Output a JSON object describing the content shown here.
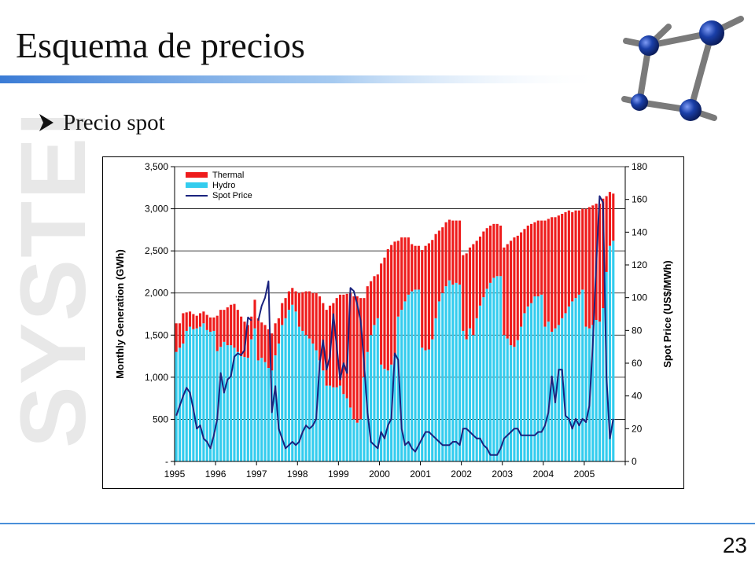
{
  "slide": {
    "title": "Esquema de precios",
    "bullet": "Precio spot",
    "page_number": "23",
    "watermark": "SYSTEP",
    "colors": {
      "accent_blue": "#4a90d9",
      "molecule_ball": "#1a3fa8",
      "molecule_rod": "#7a7a7a"
    }
  },
  "chart_data": {
    "type": "bar",
    "title": "",
    "ylabel": "Monthly Generation (GWh)",
    "y2label": "Spot Price (US$/MWh)",
    "ylim": [
      0,
      3500
    ],
    "y2lim": [
      0,
      180
    ],
    "y_ticks": [
      "-",
      "500",
      "1,000",
      "1,500",
      "2,000",
      "2,500",
      "3,000",
      "3,500"
    ],
    "y2_ticks": [
      "0",
      "20",
      "40",
      "60",
      "80",
      "100",
      "120",
      "140",
      "160",
      "180"
    ],
    "x_ticks": [
      "1995",
      "1996",
      "1997",
      "1998",
      "1999",
      "2000",
      "2001",
      "2002",
      "2003",
      "2004",
      "2005"
    ],
    "x_start": "1995-01",
    "grid": true,
    "legend_position": "top-left",
    "colors": {
      "thermal": "#ee1c1c",
      "hydro": "#33ccee",
      "spot": "#1a237e"
    },
    "series": [
      {
        "name": "Thermal",
        "kind": "bar",
        "color": "#ee1c1c",
        "values": [
          340,
          290,
          360,
          220,
          180,
          180,
          150,
          160,
          140,
          180,
          170,
          160,
          420,
          440,
          380,
          450,
          480,
          520,
          500,
          470,
          420,
          390,
          270,
          340,
          500,
          420,
          440,
          460,
          440,
          380,
          300,
          260,
          240,
          220,
          200,
          240,
          400,
          460,
          520,
          560,
          600,
          680,
          760,
          800,
          900,
          950,
          1000,
          1060,
          1080,
          1180,
          1240,
          1360,
          1460,
          1500,
          1440,
          940,
          780,
          640,
          580,
          520,
          1200,
          1320,
          1440,
          1420,
          1360,
          900,
          860,
          760,
          680,
          560,
          520,
          520,
          1160,
          1240,
          1260,
          1180,
          1000,
          840,
          780,
          760,
          720,
          760,
          740,
          760,
          900,
          1020,
          960,
          1080,
          920,
          820,
          780,
          720,
          680,
          640,
          620,
          600,
          1040,
          1120,
          1240,
          1300,
          1240,
          1120,
          1000,
          960,
          940,
          880,
          900,
          880,
          1260,
          1220,
          1360,
          1320,
          1300,
          1240,
          1200,
          1140,
          1060,
          1040,
          1000,
          960,
          1400,
          1440,
          1420,
          1380,
          1400,
          1300,
          900,
          640,
          560
        ]
      },
      {
        "name": "Hydro",
        "kind": "bar",
        "color": "#33ccee",
        "values": [
          1300,
          1350,
          1400,
          1550,
          1600,
          1570,
          1580,
          1600,
          1640,
          1560,
          1540,
          1550,
          1310,
          1360,
          1420,
          1380,
          1380,
          1350,
          1300,
          1250,
          1240,
          1230,
          1450,
          1580,
          1200,
          1230,
          1180,
          1110,
          1080,
          1260,
          1400,
          1620,
          1700,
          1800,
          1860,
          1780,
          1600,
          1550,
          1500,
          1460,
          1400,
          1320,
          1200,
          1080,
          900,
          900,
          880,
          880,
          900,
          800,
          750,
          640,
          500,
          460,
          500,
          1000,
          1300,
          1500,
          1620,
          1700,
          1150,
          1100,
          1080,
          1150,
          1250,
          1720,
          1800,
          1900,
          1980,
          2020,
          2040,
          2040,
          1350,
          1320,
          1330,
          1450,
          1700,
          1900,
          2000,
          2080,
          2150,
          2100,
          2120,
          2100,
          1550,
          1450,
          1580,
          1500,
          1700,
          1850,
          1950,
          2050,
          2120,
          2180,
          2200,
          2200,
          1500,
          1460,
          1380,
          1360,
          1440,
          1600,
          1760,
          1840,
          1880,
          1960,
          1960,
          1980,
          1600,
          1660,
          1540,
          1580,
          1620,
          1700,
          1760,
          1840,
          1900,
          1940,
          1980,
          2040,
          1600,
          1580,
          1620,
          1680,
          1660,
          1820,
          2250,
          2560,
          2620
        ]
      },
      {
        "name": "Spot Price",
        "kind": "line",
        "axis": "right",
        "color": "#1a237e",
        "values": [
          28,
          34,
          40,
          45,
          42,
          32,
          20,
          22,
          14,
          12,
          8,
          16,
          26,
          54,
          42,
          50,
          52,
          64,
          66,
          65,
          68,
          88,
          86,
          null,
          86,
          95,
          100,
          110,
          30,
          46,
          20,
          14,
          8,
          10,
          12,
          10,
          12,
          18,
          22,
          20,
          22,
          26,
          60,
          74,
          56,
          64,
          90,
          70,
          50,
          60,
          54,
          106,
          104,
          96,
          86,
          60,
          30,
          12,
          10,
          8,
          18,
          14,
          22,
          26,
          66,
          62,
          20,
          10,
          12,
          8,
          6,
          10,
          14,
          18,
          18,
          16,
          14,
          12,
          10,
          10,
          10,
          12,
          12,
          10,
          20,
          20,
          18,
          16,
          14,
          14,
          10,
          8,
          4,
          4,
          4,
          8,
          14,
          16,
          18,
          20,
          20,
          16,
          16,
          16,
          16,
          16,
          18,
          18,
          22,
          30,
          52,
          36,
          56,
          56,
          28,
          26,
          20,
          26,
          22,
          26,
          24,
          34,
          72,
          120,
          162,
          158,
          52,
          14,
          26
        ]
      }
    ]
  }
}
